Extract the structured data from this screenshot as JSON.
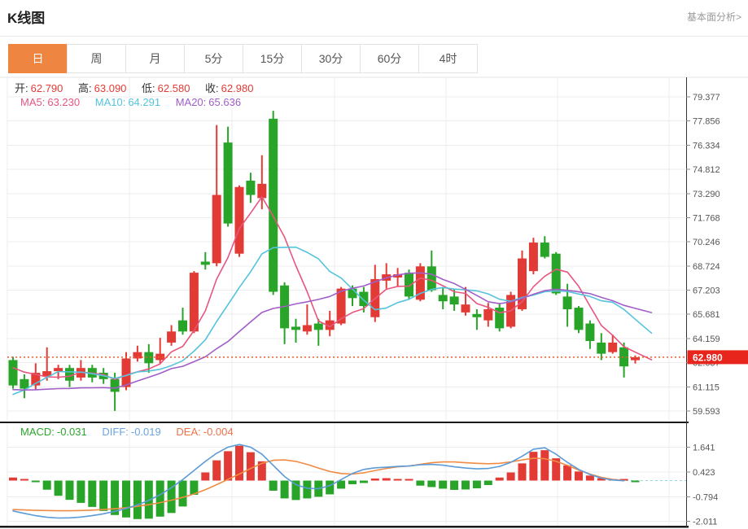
{
  "header": {
    "title": "K线图",
    "link": "基本面分析>"
  },
  "tabs": [
    {
      "id": "day",
      "label": "日",
      "selected": true
    },
    {
      "id": "week",
      "label": "周",
      "selected": false
    },
    {
      "id": "month",
      "label": "月",
      "selected": false
    },
    {
      "id": "5min",
      "label": "5分",
      "selected": false
    },
    {
      "id": "15min",
      "label": "15分",
      "selected": false
    },
    {
      "id": "30min",
      "label": "30分",
      "selected": false
    },
    {
      "id": "60min",
      "label": "60分",
      "selected": false
    },
    {
      "id": "4hour",
      "label": "4时",
      "selected": false
    }
  ],
  "quote_bar": {
    "open": {
      "label": "开:",
      "value": "62.790"
    },
    "high": {
      "label": "高:",
      "value": "63.090"
    },
    "low": {
      "label": "低:",
      "value": "62.580"
    },
    "close": {
      "label": "收:",
      "value": "62.980"
    }
  },
  "ma_bar": {
    "ma5": {
      "label": "MA5:",
      "value": "63.230"
    },
    "ma10": {
      "label": "MA10:",
      "value": "64.291"
    },
    "ma20": {
      "label": "MA20:",
      "value": "65.636"
    }
  },
  "macd_bar": {
    "macd": {
      "label": "MACD:",
      "value": "-0.031"
    },
    "diff": {
      "label": "DIFF:",
      "value": "-0.019"
    },
    "dea": {
      "label": "DEA:",
      "value": "-0.004"
    }
  },
  "colors": {
    "up_red": "#e23b35",
    "down_green": "#28a428",
    "value_red": "#e23b35",
    "ma5": "#e8557f",
    "ma10": "#54c3dc",
    "ma20": "#a05fc8",
    "diff_line": "#5b9bd8",
    "dea_line": "#f08c44",
    "macd_label": "#2ca52c",
    "diff_label": "#6aa4e2",
    "dea_label": "#f0714a",
    "price_line": "#f25a29",
    "badge_bg": "#e8251c",
    "badge_text": "#ffffff",
    "tab_selected_bg": "#ee8540",
    "axis_text": "#555555",
    "grid": "#ececec",
    "border_light": "#e6e6e6",
    "border_dark": "#1a1a1a",
    "zero_dash": "#8fd4e8"
  },
  "chart_data": {
    "type": "candlestick+macd",
    "v_grid_x": [
      159,
      285,
      411,
      548,
      685,
      822
    ],
    "main": {
      "type": "candlestick",
      "y_ticks": [
        79.377,
        77.856,
        76.334,
        74.812,
        73.29,
        71.768,
        70.246,
        68.724,
        67.203,
        65.681,
        64.159,
        62.637,
        61.115,
        59.593
      ],
      "current_price": {
        "value": 62.98,
        "label": "62.980"
      },
      "ma_windows": [
        5,
        10,
        20
      ],
      "ma_seed_closes": [
        61.6,
        61.5,
        61.7,
        61.4,
        61.6,
        61.3,
        61.5,
        61.6,
        61.4,
        61.4,
        59.0,
        58.2,
        57.9,
        58.3,
        58.6,
        61.8,
        62.4,
        62.7,
        62.9,
        62.4
      ],
      "candles_ohlc": [
        [
          62.8,
          63.0,
          61.0,
          61.2
        ],
        [
          61.6,
          61.9,
          60.4,
          61.0
        ],
        [
          61.2,
          62.6,
          60.9,
          62.0
        ],
        [
          61.8,
          63.6,
          61.5,
          62.1
        ],
        [
          62.1,
          62.5,
          61.6,
          62.3
        ],
        [
          62.3,
          62.5,
          61.1,
          61.5
        ],
        [
          61.7,
          62.8,
          61.5,
          62.3
        ],
        [
          62.3,
          62.5,
          61.4,
          61.7
        ],
        [
          62.0,
          62.3,
          61.3,
          61.6
        ],
        [
          61.6,
          62.0,
          59.6,
          60.8
        ],
        [
          61.1,
          63.3,
          60.9,
          62.9
        ],
        [
          62.9,
          63.7,
          62.7,
          63.3
        ],
        [
          63.3,
          63.8,
          62.0,
          62.6
        ],
        [
          62.8,
          64.2,
          62.6,
          63.2
        ],
        [
          63.9,
          65.0,
          63.7,
          64.6
        ],
        [
          65.3,
          66.1,
          64.4,
          64.6
        ],
        [
          64.6,
          68.4,
          64.5,
          68.3
        ],
        [
          69.0,
          69.6,
          68.5,
          68.8
        ],
        [
          68.9,
          77.6,
          68.7,
          73.2
        ],
        [
          76.5,
          77.5,
          71.2,
          71.4
        ],
        [
          69.5,
          73.8,
          69.3,
          73.7
        ],
        [
          74.1,
          74.6,
          72.7,
          73.2
        ],
        [
          73.0,
          75.7,
          72.3,
          73.9
        ],
        [
          78.0,
          78.5,
          66.9,
          67.1
        ],
        [
          67.5,
          67.7,
          63.8,
          64.8
        ],
        [
          64.9,
          65.4,
          63.9,
          64.7
        ],
        [
          64.6,
          66.3,
          64.4,
          65.0
        ],
        [
          65.1,
          65.4,
          63.7,
          64.7
        ],
        [
          64.7,
          65.9,
          64.3,
          65.3
        ],
        [
          65.1,
          67.4,
          65.0,
          67.3
        ],
        [
          67.3,
          67.5,
          66.2,
          66.7
        ],
        [
          67.1,
          67.4,
          65.8,
          66.2
        ],
        [
          65.5,
          68.8,
          65.2,
          67.9
        ],
        [
          67.8,
          68.9,
          67.3,
          68.2
        ],
        [
          68.0,
          68.6,
          67.4,
          68.2
        ],
        [
          68.3,
          68.5,
          66.6,
          66.8
        ],
        [
          66.6,
          68.9,
          66.5,
          68.7
        ],
        [
          68.7,
          69.7,
          67.1,
          67.2
        ],
        [
          66.9,
          67.4,
          66.0,
          66.5
        ],
        [
          66.8,
          67.3,
          65.9,
          66.3
        ],
        [
          65.8,
          67.4,
          65.6,
          66.3
        ],
        [
          65.7,
          66.0,
          64.7,
          65.5
        ],
        [
          65.3,
          66.4,
          64.9,
          66.0
        ],
        [
          66.1,
          66.4,
          64.6,
          64.8
        ],
        [
          64.9,
          67.1,
          64.8,
          66.9
        ],
        [
          66.0,
          69.7,
          65.9,
          69.2
        ],
        [
          68.4,
          70.5,
          68.2,
          70.2
        ],
        [
          70.2,
          70.6,
          69.2,
          69.3
        ],
        [
          69.5,
          69.6,
          66.9,
          67.0
        ],
        [
          66.8,
          67.6,
          64.9,
          66.0
        ],
        [
          66.1,
          66.2,
          64.5,
          64.7
        ],
        [
          65.1,
          65.3,
          63.5,
          64.0
        ],
        [
          63.9,
          64.5,
          62.8,
          63.2
        ],
        [
          63.3,
          64.4,
          63.2,
          63.9
        ],
        [
          63.6,
          63.9,
          61.7,
          62.4
        ],
        [
          62.79,
          63.09,
          62.58,
          62.98
        ]
      ]
    },
    "macd": {
      "type": "bar+line",
      "y_ticks": [
        1.641,
        0.423,
        -0.794,
        -2.011
      ],
      "hist": [
        0.15,
        0.08,
        -0.05,
        -0.45,
        -0.75,
        -0.95,
        -1.1,
        -1.3,
        -1.5,
        -1.7,
        -1.82,
        -1.9,
        -1.88,
        -1.78,
        -1.6,
        -1.28,
        -0.7,
        0.4,
        1.0,
        1.45,
        1.72,
        1.4,
        0.95,
        -0.5,
        -0.88,
        -0.96,
        -0.88,
        -0.8,
        -0.68,
        -0.4,
        -0.18,
        -0.12,
        0.1,
        0.12,
        0.08,
        0.05,
        -0.25,
        -0.32,
        -0.4,
        -0.46,
        -0.44,
        -0.38,
        -0.22,
        0.15,
        0.4,
        0.85,
        1.42,
        1.5,
        1.1,
        0.75,
        0.45,
        0.25,
        0.12,
        0.08,
        0.04,
        -0.031
      ],
      "diff": [
        -1.5,
        -1.62,
        -1.73,
        -1.81,
        -1.85,
        -1.84,
        -1.8,
        -1.73,
        -1.64,
        -1.52,
        -1.38,
        -1.2,
        -0.98,
        -0.7,
        -0.35,
        0.05,
        0.5,
        0.95,
        1.35,
        1.65,
        1.78,
        1.65,
        1.3,
        0.75,
        0.2,
        -0.2,
        -0.38,
        -0.4,
        -0.25,
        0.05,
        0.35,
        0.55,
        0.63,
        0.66,
        0.7,
        0.72,
        0.78,
        0.8,
        0.76,
        0.68,
        0.62,
        0.58,
        0.6,
        0.7,
        0.9,
        1.2,
        1.55,
        1.62,
        1.3,
        0.9,
        0.55,
        0.3,
        0.12,
        0.03,
        -0.01,
        -0.019
      ],
      "dea": [
        -1.43,
        -1.45,
        -1.47,
        -1.48,
        -1.49,
        -1.49,
        -1.48,
        -1.46,
        -1.43,
        -1.39,
        -1.34,
        -1.27,
        -1.19,
        -1.09,
        -0.97,
        -0.83,
        -0.66,
        -0.45,
        -0.2,
        0.06,
        0.32,
        0.6,
        0.85,
        1.0,
        1.02,
        0.95,
        0.8,
        0.62,
        0.45,
        0.35,
        0.32,
        0.38,
        0.5,
        0.6,
        0.68,
        0.72,
        0.8,
        0.88,
        0.92,
        0.92,
        0.88,
        0.85,
        0.83,
        0.85,
        0.92,
        1.02,
        1.1,
        1.08,
        0.95,
        0.75,
        0.52,
        0.32,
        0.16,
        0.06,
        0.0,
        -0.004
      ]
    }
  }
}
